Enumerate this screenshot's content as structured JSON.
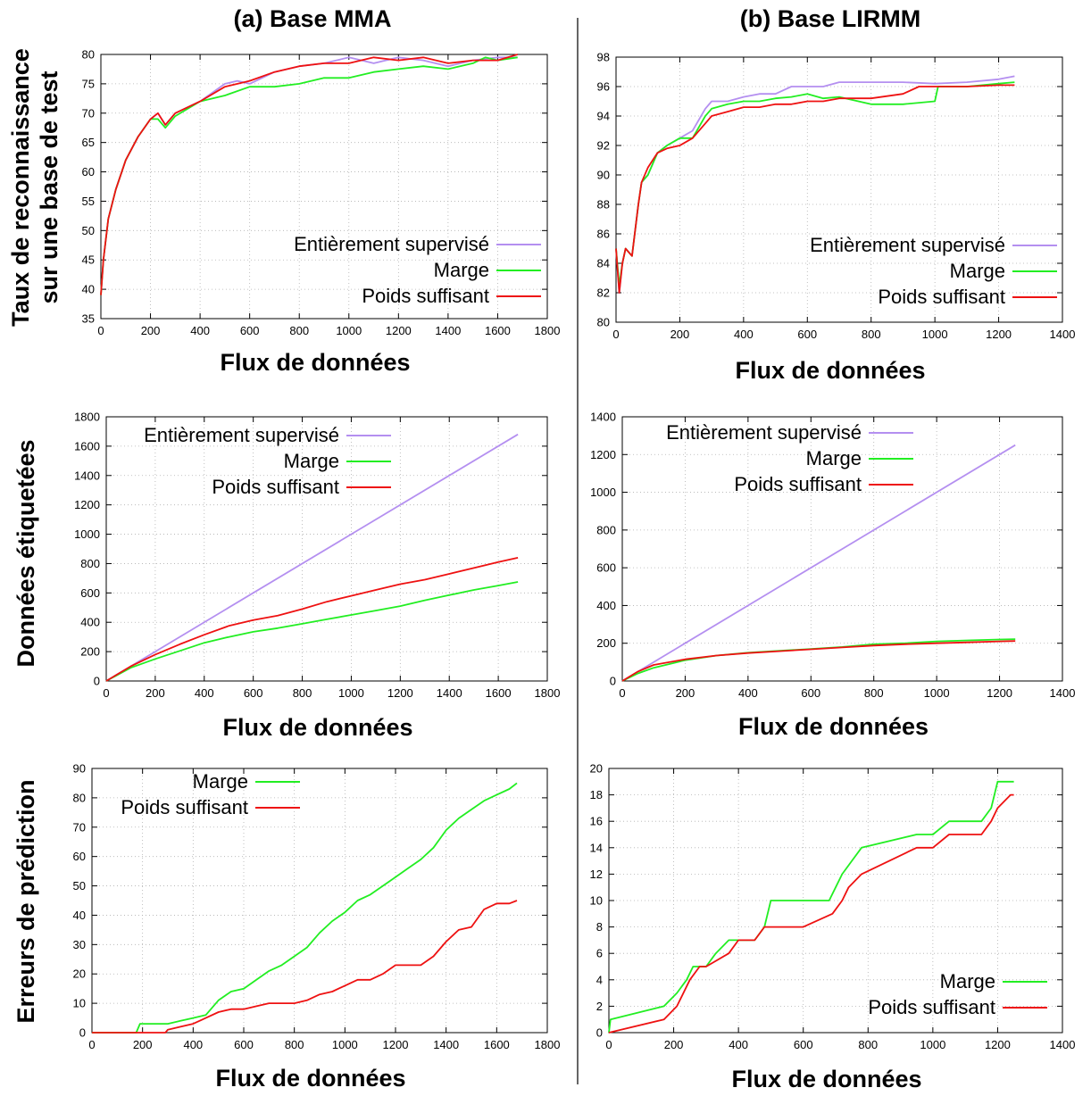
{
  "figure": {
    "col_titles": [
      "(a) Base MMA",
      "(b) Base LIRMM"
    ],
    "row_titles": {
      "r1_line1": "Taux de reconnaissance",
      "r1_line2": "sur une base de test",
      "r2": "Données étiquetées",
      "r3": "Erreurs de prédiction"
    }
  },
  "colors": {
    "Entièrement supervisé": "#b48ff0",
    "Marge": "#22ee22",
    "Poids suffisant": "#ee1111"
  },
  "chart_data": [
    {
      "type": "line",
      "xlabel": "Flux de données",
      "xlim": [
        0,
        1800
      ],
      "xticks": [
        0,
        200,
        400,
        600,
        800,
        1000,
        1200,
        1400,
        1600,
        1800
      ],
      "ylim": [
        35,
        80
      ],
      "yticks": [
        35,
        40,
        45,
        50,
        55,
        60,
        65,
        70,
        75,
        80
      ],
      "grid": true,
      "legend_position": "bottom-right",
      "series": [
        {
          "name": "Entièrement supervisé",
          "x": [
            0,
            10,
            30,
            60,
            100,
            150,
            200,
            230,
            260,
            300,
            400,
            500,
            550,
            600,
            700,
            800,
            900,
            1000,
            1100,
            1200,
            1300,
            1400,
            1500,
            1600,
            1680
          ],
          "y": [
            39,
            45,
            52,
            57,
            62,
            66,
            69,
            70,
            68,
            70,
            72,
            75,
            75.5,
            75,
            77,
            78,
            78.5,
            79.5,
            78.5,
            79.5,
            79,
            78,
            79,
            79.5,
            79.5
          ]
        },
        {
          "name": "Marge",
          "x": [
            0,
            10,
            30,
            60,
            100,
            150,
            200,
            230,
            260,
            300,
            400,
            500,
            600,
            700,
            800,
            900,
            1000,
            1100,
            1200,
            1300,
            1400,
            1500,
            1550,
            1600,
            1680
          ],
          "y": [
            39,
            45,
            52,
            57,
            62,
            66,
            69,
            69,
            67.5,
            69.5,
            72,
            73,
            74.5,
            74.5,
            75,
            76,
            76,
            77,
            77.5,
            78,
            77.5,
            78.5,
            79.5,
            79,
            79.5
          ]
        },
        {
          "name": "Poids suffisant",
          "x": [
            0,
            10,
            30,
            60,
            100,
            150,
            200,
            230,
            260,
            300,
            400,
            500,
            600,
            700,
            800,
            900,
            1000,
            1100,
            1200,
            1300,
            1400,
            1500,
            1600,
            1680
          ],
          "y": [
            39,
            45,
            52,
            57,
            62,
            66,
            69,
            70,
            68,
            70,
            72,
            74.5,
            75.5,
            77,
            78,
            78.5,
            78.5,
            79.5,
            79,
            79.5,
            78.5,
            79,
            79,
            80
          ]
        }
      ]
    },
    {
      "type": "line",
      "xlabel": "Flux de données",
      "xlim": [
        0,
        1400
      ],
      "xticks": [
        0,
        200,
        400,
        600,
        800,
        1000,
        1200,
        1400
      ],
      "ylim": [
        80,
        98
      ],
      "yticks": [
        80,
        82,
        84,
        86,
        88,
        90,
        92,
        94,
        96,
        98
      ],
      "grid": true,
      "legend_position": "bottom-right",
      "series": [
        {
          "name": "Entièrement supervisé",
          "x": [
            0,
            10,
            20,
            30,
            50,
            70,
            80,
            100,
            130,
            160,
            200,
            240,
            280,
            300,
            350,
            400,
            450,
            500,
            550,
            600,
            650,
            700,
            800,
            900,
            1000,
            1100,
            1200,
            1250
          ],
          "y": [
            85,
            82,
            84,
            85,
            84.5,
            88,
            89.5,
            90,
            91.5,
            92,
            92.5,
            93,
            94.5,
            95,
            95,
            95.3,
            95.5,
            95.5,
            96,
            96,
            96,
            96.3,
            96.3,
            96.3,
            96.2,
            96.3,
            96.5,
            96.7
          ]
        },
        {
          "name": "Marge",
          "x": [
            0,
            10,
            20,
            30,
            50,
            70,
            80,
            100,
            130,
            160,
            200,
            240,
            280,
            300,
            350,
            400,
            450,
            500,
            550,
            600,
            650,
            700,
            800,
            900,
            1000,
            1010,
            1100,
            1200,
            1250
          ],
          "y": [
            85,
            82.5,
            84,
            85,
            84.5,
            88,
            89.5,
            90,
            91.5,
            92,
            92.5,
            92.5,
            94,
            94.5,
            94.8,
            95,
            95,
            95.2,
            95.3,
            95.5,
            95.2,
            95.3,
            94.8,
            94.8,
            95,
            96,
            96,
            96.2,
            96.3
          ]
        },
        {
          "name": "Poids suffisant",
          "x": [
            0,
            10,
            20,
            30,
            50,
            70,
            80,
            100,
            130,
            160,
            200,
            240,
            280,
            300,
            350,
            400,
            450,
            500,
            550,
            600,
            650,
            700,
            800,
            900,
            950,
            1000,
            1100,
            1200,
            1250
          ],
          "y": [
            85,
            82,
            84,
            85,
            84.5,
            88,
            89.5,
            90.5,
            91.5,
            91.8,
            92,
            92.5,
            93.5,
            94,
            94.3,
            94.6,
            94.6,
            94.8,
            94.8,
            95,
            95,
            95.2,
            95.2,
            95.5,
            96,
            96,
            96,
            96.1,
            96.1
          ]
        }
      ]
    },
    {
      "type": "line",
      "xlabel": "Flux de données",
      "xlim": [
        0,
        1800
      ],
      "xticks": [
        0,
        200,
        400,
        600,
        800,
        1000,
        1200,
        1400,
        1600,
        1800
      ],
      "ylim": [
        0,
        1800
      ],
      "yticks": [
        0,
        200,
        400,
        600,
        800,
        1000,
        1200,
        1400,
        1600,
        1800
      ],
      "grid": true,
      "legend_position": "top-left",
      "series": [
        {
          "name": "Entièrement supervisé",
          "x": [
            0,
            1680
          ],
          "y": [
            0,
            1680
          ]
        },
        {
          "name": "Marge",
          "x": [
            0,
            100,
            200,
            300,
            400,
            500,
            600,
            700,
            800,
            900,
            1000,
            1100,
            1200,
            1300,
            1400,
            1500,
            1600,
            1680
          ],
          "y": [
            0,
            90,
            150,
            205,
            260,
            300,
            335,
            360,
            390,
            420,
            450,
            480,
            510,
            550,
            585,
            620,
            650,
            675
          ]
        },
        {
          "name": "Poids suffisant",
          "x": [
            0,
            100,
            200,
            300,
            400,
            500,
            600,
            700,
            800,
            900,
            1000,
            1100,
            1200,
            1300,
            1400,
            1500,
            1600,
            1680
          ],
          "y": [
            0,
            100,
            180,
            250,
            315,
            375,
            415,
            445,
            490,
            540,
            580,
            620,
            660,
            690,
            730,
            770,
            810,
            840
          ]
        }
      ]
    },
    {
      "type": "line",
      "xlabel": "Flux de données",
      "xlim": [
        0,
        1400
      ],
      "xticks": [
        0,
        200,
        400,
        600,
        800,
        1000,
        1200,
        1400
      ],
      "ylim": [
        0,
        1400
      ],
      "yticks": [
        0,
        200,
        400,
        600,
        800,
        1000,
        1200,
        1400
      ],
      "grid": true,
      "legend_position": "top-left",
      "series": [
        {
          "name": "Entièrement supervisé",
          "x": [
            0,
            1250
          ],
          "y": [
            0,
            1250
          ]
        },
        {
          "name": "Marge",
          "x": [
            0,
            50,
            100,
            200,
            300,
            400,
            500,
            600,
            700,
            800,
            900,
            1000,
            1100,
            1200,
            1250
          ],
          "y": [
            0,
            40,
            70,
            110,
            135,
            150,
            160,
            170,
            180,
            195,
            200,
            210,
            215,
            220,
            222
          ]
        },
        {
          "name": "Poids suffisant",
          "x": [
            0,
            50,
            100,
            200,
            300,
            400,
            500,
            600,
            700,
            800,
            900,
            1000,
            1100,
            1200,
            1250
          ],
          "y": [
            0,
            50,
            85,
            115,
            135,
            148,
            158,
            168,
            178,
            188,
            195,
            200,
            205,
            210,
            212
          ]
        }
      ]
    },
    {
      "type": "line",
      "xlabel": "Flux de données",
      "xlim": [
        0,
        1800
      ],
      "xticks": [
        0,
        200,
        400,
        600,
        800,
        1000,
        1200,
        1400,
        1600,
        1800
      ],
      "ylim": [
        0,
        90
      ],
      "yticks": [
        0,
        10,
        20,
        30,
        40,
        50,
        60,
        70,
        80,
        90
      ],
      "grid": true,
      "legend_position": "top-left",
      "series": [
        {
          "name": "Marge",
          "x": [
            0,
            175,
            190,
            250,
            300,
            350,
            400,
            450,
            500,
            550,
            600,
            650,
            700,
            750,
            800,
            850,
            900,
            950,
            1000,
            1050,
            1100,
            1150,
            1200,
            1250,
            1300,
            1350,
            1400,
            1450,
            1500,
            1550,
            1600,
            1650,
            1680
          ],
          "y": [
            0,
            0,
            3,
            3,
            3,
            4,
            5,
            6,
            11,
            14,
            15,
            18,
            21,
            23,
            26,
            29,
            34,
            38,
            41,
            45,
            47,
            50,
            53,
            56,
            59,
            63,
            69,
            73,
            76,
            79,
            81,
            83,
            85
          ]
        },
        {
          "name": "Poids suffisant",
          "x": [
            0,
            290,
            300,
            350,
            400,
            450,
            500,
            550,
            600,
            650,
            700,
            750,
            800,
            850,
            900,
            950,
            1000,
            1050,
            1100,
            1150,
            1200,
            1250,
            1300,
            1350,
            1400,
            1450,
            1500,
            1550,
            1600,
            1650,
            1680
          ],
          "y": [
            0,
            0,
            1,
            2,
            3,
            5,
            7,
            8,
            8,
            9,
            10,
            10,
            10,
            11,
            13,
            14,
            16,
            18,
            18,
            20,
            23,
            23,
            23,
            26,
            31,
            35,
            36,
            42,
            44,
            44,
            45
          ]
        }
      ]
    },
    {
      "type": "line",
      "xlabel": "Flux de données",
      "xlim": [
        0,
        1400
      ],
      "xticks": [
        0,
        200,
        400,
        600,
        800,
        1000,
        1200,
        1400
      ],
      "ylim": [
        0,
        20
      ],
      "yticks": [
        0,
        2,
        4,
        6,
        8,
        10,
        12,
        14,
        16,
        18,
        20
      ],
      "grid": true,
      "legend_position": "bottom-right",
      "series": [
        {
          "name": "Marge",
          "x": [
            0,
            5,
            170,
            210,
            240,
            260,
            300,
            330,
            370,
            400,
            450,
            480,
            500,
            680,
            700,
            720,
            750,
            780,
            950,
            1000,
            1050,
            1100,
            1150,
            1180,
            1190,
            1200,
            1250
          ],
          "y": [
            0,
            1,
            2,
            3,
            4,
            5,
            5,
            6,
            7,
            7,
            7,
            8,
            10,
            10,
            11,
            12,
            13,
            14,
            15,
            15,
            16,
            16,
            16,
            17,
            18,
            19,
            19
          ]
        },
        {
          "name": "Poids suffisant",
          "x": [
            0,
            170,
            210,
            250,
            280,
            300,
            370,
            400,
            450,
            480,
            500,
            600,
            690,
            720,
            740,
            780,
            950,
            1000,
            1050,
            1100,
            1150,
            1180,
            1200,
            1240,
            1250
          ],
          "y": [
            0,
            1,
            2,
            4,
            5,
            5,
            6,
            7,
            7,
            8,
            8,
            8,
            9,
            10,
            11,
            12,
            14,
            14,
            15,
            15,
            15,
            16,
            17,
            18,
            18
          ]
        }
      ]
    }
  ]
}
